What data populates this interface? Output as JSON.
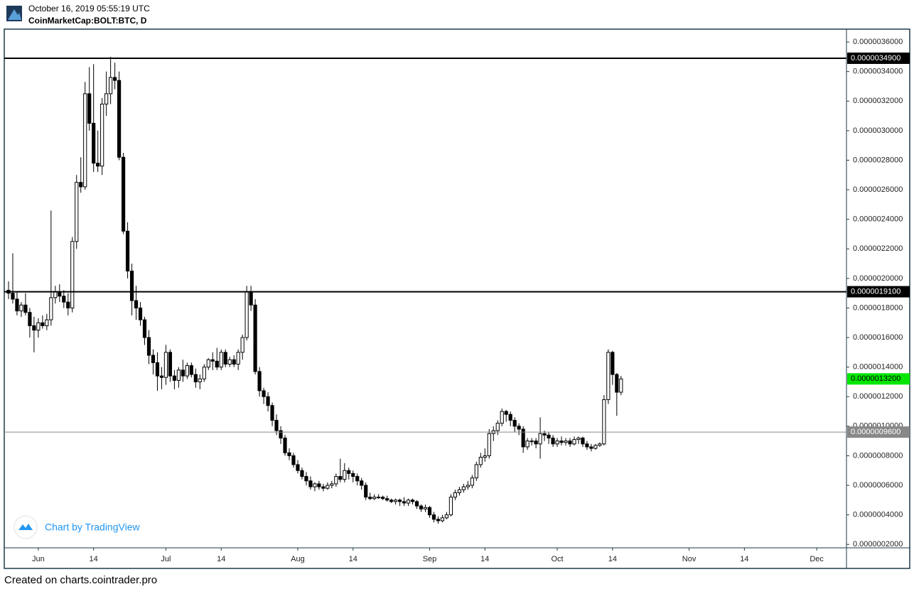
{
  "header": {
    "timestamp": "October 16, 2019 05:55:19 UTC",
    "symbol": "CoinMarketCap:BOLT:BTC, D"
  },
  "watermark": "Chart by TradingView",
  "footer": "Created on charts.cointrader.pro",
  "chart_data": {
    "type": "candlestick",
    "up_color": "#ffffff",
    "down_color": "#000000",
    "outline_color": "#000000",
    "x": [
      "2019-05-25",
      "2019-05-26",
      "2019-05-27",
      "2019-05-28",
      "2019-05-29",
      "2019-05-30",
      "2019-05-31",
      "2019-06-01",
      "2019-06-02",
      "2019-06-03",
      "2019-06-04",
      "2019-06-05",
      "2019-06-06",
      "2019-06-07",
      "2019-06-08",
      "2019-06-09",
      "2019-06-10",
      "2019-06-11",
      "2019-06-12",
      "2019-06-13",
      "2019-06-14",
      "2019-06-15",
      "2019-06-16",
      "2019-06-17",
      "2019-06-18",
      "2019-06-19",
      "2019-06-20",
      "2019-06-21",
      "2019-06-22",
      "2019-06-23",
      "2019-06-24",
      "2019-06-25",
      "2019-06-26",
      "2019-06-27",
      "2019-06-28",
      "2019-06-29",
      "2019-06-30",
      "2019-07-01",
      "2019-07-02",
      "2019-07-03",
      "2019-07-04",
      "2019-07-05",
      "2019-07-06",
      "2019-07-07",
      "2019-07-08",
      "2019-07-09",
      "2019-07-10",
      "2019-07-11",
      "2019-07-12",
      "2019-07-13",
      "2019-07-14",
      "2019-07-15",
      "2019-07-16",
      "2019-07-17",
      "2019-07-18",
      "2019-07-19",
      "2019-07-20",
      "2019-07-21",
      "2019-07-22",
      "2019-07-23",
      "2019-07-24",
      "2019-07-25",
      "2019-07-26",
      "2019-07-27",
      "2019-07-28",
      "2019-07-29",
      "2019-07-30",
      "2019-07-31",
      "2019-08-01",
      "2019-08-02",
      "2019-08-03",
      "2019-08-04",
      "2019-08-05",
      "2019-08-06",
      "2019-08-07",
      "2019-08-08",
      "2019-08-09",
      "2019-08-10",
      "2019-08-11",
      "2019-08-12",
      "2019-08-13",
      "2019-08-14",
      "2019-08-15",
      "2019-08-16",
      "2019-08-17",
      "2019-08-18",
      "2019-08-19",
      "2019-08-20",
      "2019-08-21",
      "2019-08-22",
      "2019-08-23",
      "2019-08-24",
      "2019-08-25",
      "2019-08-26",
      "2019-08-27",
      "2019-08-28",
      "2019-08-29",
      "2019-08-30",
      "2019-08-31",
      "2019-09-01",
      "2019-09-02",
      "2019-09-03",
      "2019-09-04",
      "2019-09-05",
      "2019-09-06",
      "2019-09-07",
      "2019-09-08",
      "2019-09-09",
      "2019-09-10",
      "2019-09-11",
      "2019-09-12",
      "2019-09-13",
      "2019-09-14",
      "2019-09-15",
      "2019-09-16",
      "2019-09-17",
      "2019-09-18",
      "2019-09-19",
      "2019-09-20",
      "2019-09-21",
      "2019-09-22",
      "2019-09-23",
      "2019-09-24",
      "2019-09-25",
      "2019-09-26",
      "2019-09-27",
      "2019-09-28",
      "2019-09-29",
      "2019-09-30",
      "2019-10-01",
      "2019-10-02",
      "2019-10-03",
      "2019-10-04",
      "2019-10-05",
      "2019-10-06",
      "2019-10-07",
      "2019-10-08",
      "2019-10-09",
      "2019-10-10",
      "2019-10-11",
      "2019-10-12",
      "2019-10-13",
      "2019-10-14",
      "2019-10-15",
      "2019-10-16"
    ],
    "open": [
      1.92e-06,
      1.9e-06,
      1.86e-06,
      1.78e-06,
      1.82e-06,
      1.77e-06,
      1.68e-06,
      1.65e-06,
      1.7e-06,
      1.68e-06,
      1.72e-06,
      1.87e-06,
      1.91e-06,
      1.88e-06,
      1.84e-06,
      1.8e-06,
      2.25e-06,
      2.65e-06,
      2.62e-06,
      3.25e-06,
      3.05e-06,
      2.78e-06,
      2.76e-06,
      3.18e-06,
      3.25e-06,
      3.36e-06,
      3.34e-06,
      2.82e-06,
      2.32e-06,
      2.05e-06,
      1.85e-06,
      1.8e-06,
      1.72e-06,
      1.6e-06,
      1.48e-06,
      1.43e-06,
      1.34e-06,
      1.33e-06,
      1.5e-06,
      1.34e-06,
      1.31e-06,
      1.38e-06,
      1.34e-06,
      1.41e-06,
      1.35e-06,
      1.3e-06,
      1.32e-06,
      1.4e-06,
      1.45e-06,
      1.44e-06,
      1.4e-06,
      1.5e-06,
      1.42e-06,
      1.45e-06,
      1.42e-06,
      1.5e-06,
      1.6e-06,
      1.91e-06,
      1.82e-06,
      1.37e-06,
      1.24e-06,
      1.2e-06,
      1.14e-06,
      1.04e-06,
      9.7e-07,
      9.2e-07,
      8.2e-07,
      8e-07,
      7.4e-07,
      7e-07,
      6.6e-07,
      6.3e-07,
      5.9e-07,
      6.1e-07,
      5.9e-07,
      5.8e-07,
      6e-07,
      6.1e-07,
      6.6e-07,
      6.4e-07,
      7e-07,
      6.8e-07,
      6.6e-07,
      6.3e-07,
      6e-07,
      5.2e-07,
      5.1e-07,
      5.2e-07,
      5.2e-07,
      5.1e-07,
      5e-07,
      4.9e-07,
      5e-07,
      4.9e-07,
      4.8e-07,
      5e-07,
      4.9e-07,
      4.6e-07,
      4.4e-07,
      4.5e-07,
      4e-07,
      3.7e-07,
      3.6e-07,
      3.8e-07,
      4e-07,
      5.2e-07,
      5.5e-07,
      5.7e-07,
      5.9e-07,
      6e-07,
      6.5e-07,
      7.4e-07,
      7.9e-07,
      8e-07,
      9.5e-07,
      9.7e-07,
      1.02e-06,
      1.1e-06,
      1.08e-06,
      1.04e-06,
      1e-06,
      9.8e-07,
      8.6e-07,
      9e-07,
      9e-07,
      8.8e-07,
      9.5e-07,
      9.4e-07,
      9.2e-07,
      8.8e-07,
      9e-07,
      8.9e-07,
      9e-07,
      8.8e-07,
      9.1e-07,
      9.2e-07,
      8.8e-07,
      8.6e-07,
      8.5e-07,
      8.7e-07,
      8.8e-07,
      1.18e-06,
      1.5e-06,
      1.35e-06,
      1.23e-06
    ],
    "high": [
      1.98e-06,
      2.17e-06,
      1.91e-06,
      1.84e-06,
      1.9e-06,
      1.8e-06,
      1.74e-06,
      1.73e-06,
      1.75e-06,
      1.76e-06,
      2.46e-06,
      1.95e-06,
      1.96e-06,
      1.92e-06,
      1.9e-06,
      2.28e-06,
      2.7e-06,
      2.82e-06,
      3.33e-06,
      3.43e-06,
      3.45e-06,
      3e-06,
      3.22e-06,
      3.4e-06,
      3.5e-06,
      3.46e-06,
      3.4e-06,
      2.85e-06,
      2.38e-06,
      2.1e-06,
      1.95e-06,
      1.84e-06,
      1.74e-06,
      1.65e-06,
      1.52e-06,
      1.5e-06,
      1.4e-06,
      1.55e-06,
      1.52e-06,
      1.38e-06,
      1.4e-06,
      1.45e-06,
      1.43e-06,
      1.43e-06,
      1.39e-06,
      1.35e-06,
      1.42e-06,
      1.46e-06,
      1.5e-06,
      1.53e-06,
      1.52e-06,
      1.52e-06,
      1.47e-06,
      1.48e-06,
      1.52e-06,
      1.62e-06,
      1.95e-06,
      1.95e-06,
      1.86e-06,
      1.4e-06,
      1.26e-06,
      1.23e-06,
      1.16e-06,
      1.08e-06,
      1e-06,
      9.4e-07,
      8.5e-07,
      8.2e-07,
      7.7e-07,
      7.2e-07,
      6.9e-07,
      6.6e-07,
      6.2e-07,
      6.3e-07,
      6.1e-07,
      6.2e-07,
      6.3e-07,
      6.8e-07,
      7.8e-07,
      7.5e-07,
      7.2e-07,
      7e-07,
      6.8e-07,
      6.5e-07,
      6.2e-07,
      5.5e-07,
      5.4e-07,
      5.4e-07,
      5.3e-07,
      5.3e-07,
      5.1e-07,
      5.1e-07,
      5.1e-07,
      5.2e-07,
      5.1e-07,
      5.1e-07,
      5e-07,
      4.7e-07,
      4.7e-07,
      4.6e-07,
      4.2e-07,
      3.9e-07,
      4e-07,
      4.2e-07,
      5.4e-07,
      5.7e-07,
      5.9e-07,
      6.1e-07,
      6.3e-07,
      6.7e-07,
      7.6e-07,
      8.2e-07,
      8.5e-07,
      9.8e-07,
      1e-06,
      1.04e-06,
      1.12e-06,
      1.11e-06,
      1.1e-06,
      1.06e-06,
      1.02e-06,
      1e-06,
      9.2e-07,
      9.2e-07,
      9.2e-07,
      1.06e-06,
      9.7e-07,
      9.6e-07,
      9.4e-07,
      9.2e-07,
      9.3e-07,
      9.2e-07,
      9.2e-07,
      9.3e-07,
      9.3e-07,
      9.3e-07,
      9e-07,
      8.8e-07,
      8.8e-07,
      8.9e-07,
      1.21e-06,
      1.52e-06,
      1.51e-06,
      1.36e-06,
      1.34e-06
    ],
    "low": [
      1.86e-06,
      1.83e-06,
      1.75e-06,
      1.74e-06,
      1.75e-06,
      1.6e-06,
      1.5e-06,
      1.6e-06,
      1.66e-06,
      1.65e-06,
      1.68e-06,
      1.83e-06,
      1.84e-06,
      1.8e-06,
      1.75e-06,
      1.77e-06,
      2.2e-06,
      2.58e-06,
      2.6e-06,
      3e-06,
      2.72e-06,
      2.72e-06,
      2.7e-06,
      3.1e-06,
      3.18e-06,
      3.28e-06,
      2.8e-06,
      2.3e-06,
      2e-06,
      1.75e-06,
      1.72e-06,
      1.68e-06,
      1.55e-06,
      1.42e-06,
      1.35e-06,
      1.24e-06,
      1.25e-06,
      1.28e-06,
      1.3e-06,
      1.25e-06,
      1.26e-06,
      1.3e-06,
      1.32e-06,
      1.33e-06,
      1.26e-06,
      1.25e-06,
      1.3e-06,
      1.38e-06,
      1.38e-06,
      1.38e-06,
      1.38e-06,
      1.4e-06,
      1.4e-06,
      1.4e-06,
      1.38e-06,
      1.45e-06,
      1.58e-06,
      1.78e-06,
      1.35e-06,
      1.2e-06,
      1.15e-06,
      1.1e-06,
      1e-06,
      9.4e-07,
      8.8e-07,
      8e-07,
      7.7e-07,
      7.2e-07,
      6.8e-07,
      6.4e-07,
      6e-07,
      5.7e-07,
      5.6e-07,
      5.7e-07,
      5.6e-07,
      5.7e-07,
      5.8e-07,
      5.9e-07,
      6.2e-07,
      6.2e-07,
      6.4e-07,
      6.2e-07,
      6e-07,
      5.7e-07,
      5e-07,
      5e-07,
      5e-07,
      5.1e-07,
      5e-07,
      4.9e-07,
      4.8e-07,
      4.7e-07,
      4.6e-07,
      4.6e-07,
      4.6e-07,
      4.7e-07,
      4.4e-07,
      4.2e-07,
      4.2e-07,
      3.8e-07,
      3.5e-07,
      3.4e-07,
      3.5e-07,
      3.7e-07,
      3.9e-07,
      5e-07,
      5.3e-07,
      5.5e-07,
      5.7e-07,
      5.8e-07,
      6.3e-07,
      7.2e-07,
      7.6e-07,
      7.8e-07,
      9e-07,
      9.4e-07,
      1e-06,
      1.03e-06,
      1e-06,
      9.6e-07,
      9.4e-07,
      8.2e-07,
      8.4e-07,
      8.7e-07,
      8.5e-07,
      7.8e-07,
      9e-07,
      8.8e-07,
      8.6e-07,
      8.6e-07,
      8.7e-07,
      8.7e-07,
      8.6e-07,
      8.7e-07,
      8.8e-07,
      8.6e-07,
      8.4e-07,
      8.3e-07,
      8.4e-07,
      8.6e-07,
      8.7e-07,
      1.15e-06,
      1.28e-06,
      1.07e-06,
      1.21e-06
    ],
    "close": [
      1.9e-06,
      1.86e-06,
      1.78e-06,
      1.82e-06,
      1.77e-06,
      1.68e-06,
      1.65e-06,
      1.7e-06,
      1.68e-06,
      1.72e-06,
      1.87e-06,
      1.91e-06,
      1.88e-06,
      1.84e-06,
      1.8e-06,
      2.25e-06,
      2.65e-06,
      2.62e-06,
      3.25e-06,
      3.05e-06,
      2.78e-06,
      2.76e-06,
      3.18e-06,
      3.25e-06,
      3.36e-06,
      3.34e-06,
      2.82e-06,
      2.32e-06,
      2.05e-06,
      1.85e-06,
      1.8e-06,
      1.72e-06,
      1.6e-06,
      1.48e-06,
      1.43e-06,
      1.34e-06,
      1.33e-06,
      1.5e-06,
      1.34e-06,
      1.31e-06,
      1.38e-06,
      1.34e-06,
      1.41e-06,
      1.35e-06,
      1.3e-06,
      1.32e-06,
      1.4e-06,
      1.45e-06,
      1.44e-06,
      1.4e-06,
      1.5e-06,
      1.42e-06,
      1.45e-06,
      1.42e-06,
      1.5e-06,
      1.6e-06,
      1.91e-06,
      1.82e-06,
      1.37e-06,
      1.24e-06,
      1.2e-06,
      1.14e-06,
      1.04e-06,
      9.7e-07,
      9.2e-07,
      8.2e-07,
      8e-07,
      7.4e-07,
      7e-07,
      6.6e-07,
      6.3e-07,
      5.9e-07,
      6.1e-07,
      5.9e-07,
      5.8e-07,
      6e-07,
      6.1e-07,
      6.6e-07,
      6.4e-07,
      7e-07,
      6.8e-07,
      6.6e-07,
      6.3e-07,
      6e-07,
      5.2e-07,
      5.1e-07,
      5.2e-07,
      5.2e-07,
      5.1e-07,
      5e-07,
      4.9e-07,
      5e-07,
      4.9e-07,
      4.8e-07,
      5e-07,
      4.9e-07,
      4.6e-07,
      4.4e-07,
      4.5e-07,
      4e-07,
      3.7e-07,
      3.6e-07,
      3.8e-07,
      4e-07,
      5.2e-07,
      5.5e-07,
      5.7e-07,
      5.9e-07,
      6e-07,
      6.5e-07,
      7.4e-07,
      7.9e-07,
      8e-07,
      9.5e-07,
      9.7e-07,
      1.02e-06,
      1.1e-06,
      1.08e-06,
      1.04e-06,
      1e-06,
      9.8e-07,
      8.6e-07,
      9e-07,
      9e-07,
      8.8e-07,
      9.5e-07,
      9.4e-07,
      9.2e-07,
      8.8e-07,
      9e-07,
      8.9e-07,
      9e-07,
      8.8e-07,
      9.1e-07,
      9.2e-07,
      8.8e-07,
      8.6e-07,
      8.5e-07,
      8.7e-07,
      8.8e-07,
      1.18e-06,
      1.5e-06,
      1.35e-06,
      1.23e-06,
      1.32e-06
    ],
    "xlim": [
      "2019-05-24",
      "2019-12-08"
    ],
    "xticks": [
      {
        "value": "2019-06-01",
        "label": "Jun"
      },
      {
        "value": "2019-06-14",
        "label": "14"
      },
      {
        "value": "2019-07-01",
        "label": "Jul"
      },
      {
        "value": "2019-07-14",
        "label": "14"
      },
      {
        "value": "2019-08-01",
        "label": "Aug"
      },
      {
        "value": "2019-08-14",
        "label": "14"
      },
      {
        "value": "2019-09-01",
        "label": "Sep"
      },
      {
        "value": "2019-09-14",
        "label": "14"
      },
      {
        "value": "2019-10-01",
        "label": "Oct"
      },
      {
        "value": "2019-10-14",
        "label": "14"
      },
      {
        "value": "2019-11-01",
        "label": "Nov"
      },
      {
        "value": "2019-11-14",
        "label": "14"
      },
      {
        "value": "2019-12-01",
        "label": "Dec"
      }
    ],
    "ylim": [
      1.77e-07,
      3.687e-06
    ],
    "yticks": [
      {
        "value": 2e-07,
        "label": "0.0000002000"
      },
      {
        "value": 4e-07,
        "label": "0.0000004000"
      },
      {
        "value": 6e-07,
        "label": "0.0000006000"
      },
      {
        "value": 8e-07,
        "label": "0.0000008000"
      },
      {
        "value": 1e-06,
        "label": "0.0000010000"
      },
      {
        "value": 1.2e-06,
        "label": "0.0000012000"
      },
      {
        "value": 1.4e-06,
        "label": "0.0000014000"
      },
      {
        "value": 1.6e-06,
        "label": "0.0000016000"
      },
      {
        "value": 1.8e-06,
        "label": "0.0000018000"
      },
      {
        "value": 2e-06,
        "label": "0.0000020000"
      },
      {
        "value": 2.2e-06,
        "label": "0.0000022000"
      },
      {
        "value": 2.4e-06,
        "label": "0.0000024000"
      },
      {
        "value": 2.6e-06,
        "label": "0.0000026000"
      },
      {
        "value": 2.8e-06,
        "label": "0.0000028000"
      },
      {
        "value": 3e-06,
        "label": "0.0000030000"
      },
      {
        "value": 3.2e-06,
        "label": "0.0000032000"
      },
      {
        "value": 3.4e-06,
        "label": "0.0000034000"
      },
      {
        "value": 3.6e-06,
        "label": "0.0000036000"
      }
    ],
    "price_lines": [
      {
        "value": 3.49e-06,
        "label": "0.0000034900",
        "color": "#000000",
        "width": 2
      },
      {
        "value": 1.91e-06,
        "label": "0.0000019100",
        "color": "#000000",
        "width": 2
      },
      {
        "value": 9.6e-07,
        "label": "0.0000009600",
        "color": "#888888",
        "width": 1
      }
    ],
    "last_price": {
      "value": 1.32e-06,
      "label": "0.0000013200",
      "color": "#00e600"
    }
  }
}
